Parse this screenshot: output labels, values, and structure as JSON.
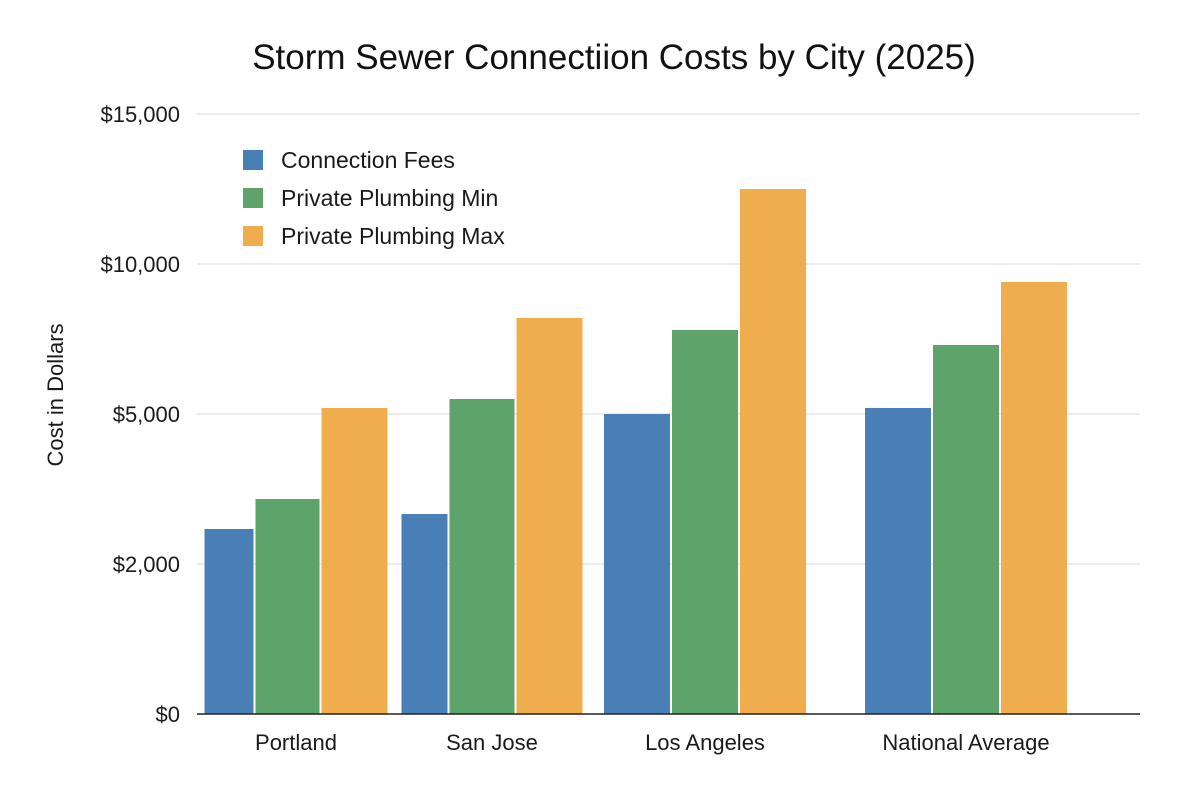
{
  "chart_data": {
    "type": "bar",
    "title": "Storm Sewer Connectiion Costs by City (2025)",
    "xlabel": "",
    "ylabel": "Cost in Dollars",
    "categories": [
      "Portland",
      "San Jose",
      "Los Angeles",
      "National Average"
    ],
    "series": [
      {
        "name": "Connection Fees",
        "color": "#4a7fb5",
        "values": [
          2700,
          3000,
          5000,
          5200
        ]
      },
      {
        "name": "Private Plumbing Min",
        "color": "#5da36a",
        "values": [
          3300,
          5500,
          7800,
          7300
        ]
      },
      {
        "name": "Private Plumbing Max",
        "color": "#f0ad4e",
        "values": [
          5200,
          8200,
          12500,
          9400
        ]
      }
    ],
    "y_ticks": [
      {
        "value": 0,
        "label": "$0"
      },
      {
        "value": 2000,
        "label": "$2,000"
      },
      {
        "value": 5000,
        "label": "$5,000"
      },
      {
        "value": 10000,
        "label": "$10,000"
      },
      {
        "value": 15000,
        "label": "$15,000"
      }
    ],
    "grid": true,
    "legend_position": "top-left"
  }
}
